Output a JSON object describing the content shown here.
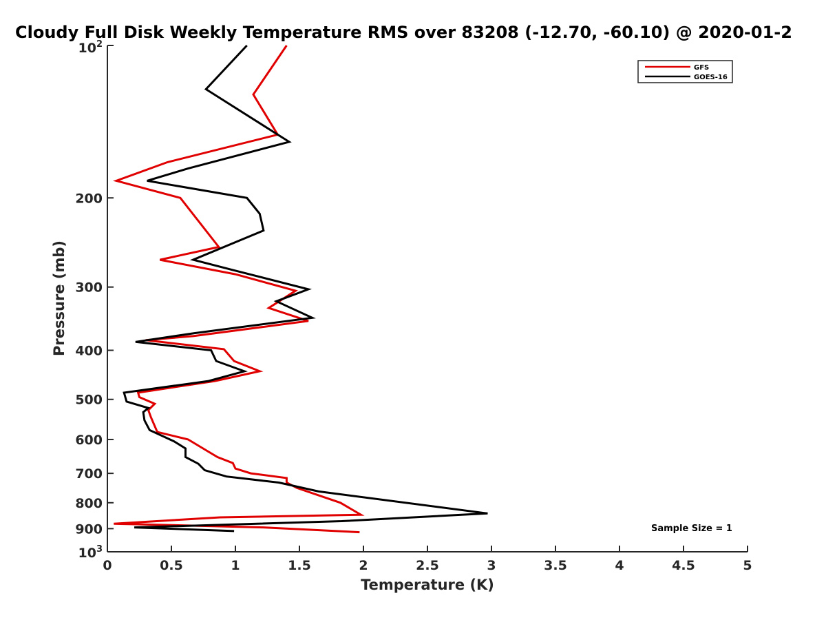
{
  "chart_data": {
    "type": "line",
    "title": "Cloudy Full Disk Weekly Temperature RMS over 83208 (-12.70, -60.10) @ 2020-01-2",
    "xlabel": "Temperature (K)",
    "ylabel": "Pressure (mb)",
    "xlim": [
      0,
      5
    ],
    "ylim": [
      100,
      1000
    ],
    "y_scale": "log",
    "y_reversed": true,
    "grid": false,
    "legend_position": "top-right",
    "x_ticks": [
      0,
      0.5,
      1,
      1.5,
      2,
      2.5,
      3,
      3.5,
      4,
      4.5,
      5
    ],
    "x_tick_labels": [
      "0",
      "0.5",
      "1",
      "1.5",
      "2",
      "2.5",
      "3",
      "3.5",
      "4",
      "4.5",
      "5"
    ],
    "y_ticks": [
      200,
      300,
      400,
      500,
      600,
      700,
      800,
      900
    ],
    "y_tick_labels": [
      "200",
      "300",
      "400",
      "500",
      "600",
      "700",
      "800",
      "900"
    ],
    "y_top_label": {
      "base": "10",
      "exp": "2"
    },
    "y_bottom_label": {
      "base": "10",
      "exp": "3"
    },
    "annotation": "Sample Size = 1",
    "series": [
      {
        "name": "GFS",
        "color": "#e00000",
        "points": [
          [
            1.4,
            100
          ],
          [
            1.14,
            125
          ],
          [
            1.33,
            150
          ],
          [
            0.47,
            170
          ],
          [
            0.07,
            185
          ],
          [
            0.57,
            200
          ],
          [
            0.87,
            250
          ],
          [
            0.41,
            265
          ],
          [
            1.0,
            283
          ],
          [
            1.47,
            305
          ],
          [
            1.26,
            330
          ],
          [
            1.57,
            350
          ],
          [
            0.67,
            375
          ],
          [
            0.3,
            382
          ],
          [
            0.91,
            398
          ],
          [
            0.99,
            420
          ],
          [
            1.19,
            440
          ],
          [
            0.84,
            460
          ],
          [
            0.24,
            485
          ],
          [
            0.25,
            495
          ],
          [
            0.37,
            510
          ],
          [
            0.32,
            525
          ],
          [
            0.34,
            542
          ],
          [
            0.39,
            580
          ],
          [
            0.63,
            600
          ],
          [
            0.77,
            630
          ],
          [
            0.86,
            650
          ],
          [
            0.98,
            668
          ],
          [
            1.0,
            685
          ],
          [
            1.12,
            700
          ],
          [
            1.4,
            715
          ],
          [
            1.4,
            730
          ],
          [
            1.48,
            748
          ],
          [
            1.82,
            800
          ],
          [
            1.98,
            845
          ],
          [
            0.88,
            855
          ],
          [
            0.05,
            880
          ],
          [
            1.22,
            895
          ],
          [
            1.97,
            915
          ]
        ]
      },
      {
        "name": "GOES-16",
        "color": "#000000",
        "points": [
          [
            1.09,
            100
          ],
          [
            0.77,
            122
          ],
          [
            1.42,
            155
          ],
          [
            0.63,
            175
          ],
          [
            0.31,
            185
          ],
          [
            1.09,
            200
          ],
          [
            1.19,
            215
          ],
          [
            1.22,
            232
          ],
          [
            0.67,
            265
          ],
          [
            0.99,
            278
          ],
          [
            1.57,
            303
          ],
          [
            1.32,
            320
          ],
          [
            1.6,
            345
          ],
          [
            0.68,
            370
          ],
          [
            0.22,
            385
          ],
          [
            0.81,
            400
          ],
          [
            0.85,
            420
          ],
          [
            1.07,
            440
          ],
          [
            0.79,
            460
          ],
          [
            0.13,
            485
          ],
          [
            0.15,
            505
          ],
          [
            0.32,
            520
          ],
          [
            0.28,
            530
          ],
          [
            0.29,
            550
          ],
          [
            0.33,
            575
          ],
          [
            0.52,
            605
          ],
          [
            0.61,
            625
          ],
          [
            0.61,
            650
          ],
          [
            0.71,
            670
          ],
          [
            0.76,
            690
          ],
          [
            0.93,
            710
          ],
          [
            1.34,
            730
          ],
          [
            1.65,
            760
          ],
          [
            2.97,
            840
          ],
          [
            1.83,
            870
          ],
          [
            0.21,
            895
          ],
          [
            0.99,
            910
          ]
        ]
      }
    ]
  }
}
